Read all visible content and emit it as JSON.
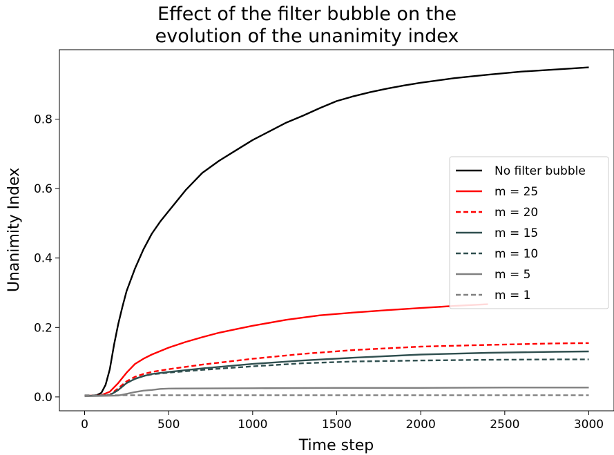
{
  "chart_data": {
    "type": "line",
    "title_line1": "Effect of the filter bubble on the",
    "title_line2": "evolution of the unanimity index",
    "xlabel": "Time step",
    "ylabel": "Unanimity Index",
    "xlim": [
      -150,
      3150
    ],
    "ylim": [
      -0.04,
      1.0
    ],
    "xticks": [
      0,
      500,
      1000,
      1500,
      2000,
      2500,
      3000
    ],
    "xtick_labels": [
      "0",
      "500",
      "1000",
      "1500",
      "2000",
      "2500",
      "3000"
    ],
    "yticks": [
      0.0,
      0.2,
      0.4,
      0.6,
      0.8
    ],
    "ytick_labels": [
      "0.0",
      "0.2",
      "0.4",
      "0.6",
      "0.8"
    ],
    "grid": false,
    "legend_position": "center-right",
    "series": [
      {
        "name": "No filter bubble",
        "color": "#000000",
        "dash": "solid",
        "x": [
          0,
          50,
          75,
          100,
          125,
          150,
          175,
          200,
          225,
          250,
          300,
          350,
          400,
          450,
          500,
          600,
          700,
          800,
          900,
          1000,
          1100,
          1200,
          1300,
          1400,
          1500,
          1600,
          1700,
          1800,
          1900,
          2000,
          2200,
          2400,
          2600,
          2800,
          3000
        ],
        "y": [
          0.003,
          0.004,
          0.006,
          0.012,
          0.035,
          0.08,
          0.15,
          0.21,
          0.26,
          0.305,
          0.37,
          0.425,
          0.47,
          0.505,
          0.535,
          0.595,
          0.645,
          0.68,
          0.71,
          0.74,
          0.765,
          0.79,
          0.81,
          0.832,
          0.852,
          0.866,
          0.878,
          0.888,
          0.897,
          0.905,
          0.918,
          0.928,
          0.937,
          0.943,
          0.949
        ]
      },
      {
        "name": "m = 25",
        "color": "#ff0000",
        "dash": "solid",
        "x": [
          0,
          100,
          150,
          200,
          250,
          300,
          350,
          400,
          500,
          600,
          700,
          800,
          900,
          1000,
          1200,
          1400,
          1600,
          1800,
          2000,
          2200,
          2400
        ],
        "y": [
          0.003,
          0.005,
          0.015,
          0.04,
          0.07,
          0.095,
          0.11,
          0.122,
          0.142,
          0.158,
          0.172,
          0.185,
          0.195,
          0.205,
          0.222,
          0.235,
          0.243,
          0.25,
          0.256,
          0.262,
          0.267
        ]
      },
      {
        "name": "m = 20",
        "color": "#ff0000",
        "dash": "dashed",
        "x": [
          0,
          150,
          200,
          250,
          300,
          350,
          400,
          500,
          700,
          1000,
          1300,
          1600,
          2000,
          2400,
          2800,
          3000
        ],
        "y": [
          0.003,
          0.006,
          0.025,
          0.045,
          0.058,
          0.066,
          0.072,
          0.08,
          0.093,
          0.11,
          0.124,
          0.135,
          0.145,
          0.15,
          0.154,
          0.155
        ]
      },
      {
        "name": "m = 15",
        "color": "#2f4f4f",
        "dash": "solid",
        "x": [
          0,
          150,
          200,
          250,
          300,
          350,
          400,
          500,
          700,
          1000,
          1300,
          1600,
          2000,
          2400,
          2800,
          3000
        ],
        "y": [
          0.003,
          0.005,
          0.02,
          0.04,
          0.052,
          0.06,
          0.066,
          0.072,
          0.082,
          0.095,
          0.105,
          0.113,
          0.122,
          0.127,
          0.13,
          0.131
        ]
      },
      {
        "name": "m = 10",
        "color": "#2f4f4f",
        "dash": "dashed",
        "x": [
          0,
          150,
          200,
          250,
          300,
          350,
          400,
          500,
          700,
          1000,
          1300,
          1600,
          2000,
          2400,
          2800,
          3000
        ],
        "y": [
          0.003,
          0.005,
          0.02,
          0.04,
          0.052,
          0.06,
          0.065,
          0.07,
          0.078,
          0.088,
          0.097,
          0.102,
          0.105,
          0.107,
          0.108,
          0.108
        ]
      },
      {
        "name": "m = 5",
        "color": "#808080",
        "dash": "solid",
        "x": [
          0,
          200,
          250,
          300,
          350,
          400,
          450,
          500,
          1000,
          1500,
          2000,
          2500,
          3000
        ],
        "y": [
          0.002,
          0.004,
          0.009,
          0.014,
          0.018,
          0.02,
          0.023,
          0.024,
          0.025,
          0.026,
          0.026,
          0.027,
          0.027
        ]
      },
      {
        "name": "m = 1",
        "color": "#808080",
        "dash": "dashed",
        "x": [
          0,
          500,
          1000,
          1500,
          2000,
          2500,
          3000
        ],
        "y": [
          0.005,
          0.005,
          0.005,
          0.005,
          0.005,
          0.005,
          0.005
        ]
      }
    ]
  }
}
